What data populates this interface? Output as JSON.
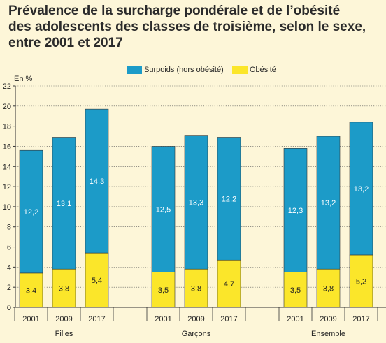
{
  "title_lines": [
    "Prévalence de la surcharge pondérale et de l’obésité",
    "des adolescents des classes de troisième, selon le sexe,",
    "entre 2001 et 2017"
  ],
  "colors": {
    "surpoids": "#1c9bc8",
    "obesite": "#fbe62a",
    "background": "#fdf6d8",
    "axis": "#333333"
  },
  "chart_data": {
    "type": "bar",
    "stacked": true,
    "title": "Prévalence de la surcharge pondérale et de l’obésité des adolescents des classes de troisième, selon le sexe, entre 2001 et 2017",
    "ylabel": "En %",
    "ylim": [
      0,
      22
    ],
    "yticks": [
      0,
      2,
      4,
      6,
      8,
      10,
      12,
      14,
      16,
      18,
      20,
      22
    ],
    "grid": true,
    "legend_position": "top-center",
    "groups": [
      {
        "label": "Filles",
        "categories": [
          "2001",
          "2009",
          "2017"
        ]
      },
      {
        "label": "Garçons",
        "categories": [
          "2001",
          "2009",
          "2017"
        ]
      },
      {
        "label": "Ensemble",
        "categories": [
          "2001",
          "2009",
          "2017"
        ]
      }
    ],
    "series": [
      {
        "name": "Obésité",
        "values": [
          3.4,
          3.8,
          5.4,
          3.5,
          3.8,
          4.7,
          3.5,
          3.8,
          5.2
        ],
        "labels": [
          "3,4",
          "3,8",
          "5,4",
          "3,5",
          "3,8",
          "4,7",
          "3,5",
          "3,8",
          "5,2"
        ]
      },
      {
        "name": "Surpoids (hors obésité)",
        "values": [
          12.2,
          13.1,
          14.3,
          12.5,
          13.3,
          12.2,
          12.3,
          13.2,
          13.2
        ],
        "labels": [
          "12,2",
          "13,1",
          "14,3",
          "12,5",
          "13,3",
          "12,2",
          "12,3",
          "13,2",
          "13,2"
        ]
      }
    ]
  }
}
